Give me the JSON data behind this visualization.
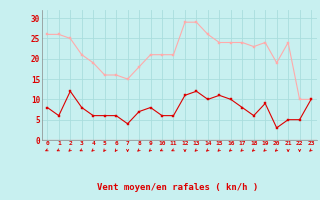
{
  "hours": [
    0,
    1,
    2,
    3,
    4,
    5,
    6,
    7,
    8,
    9,
    10,
    11,
    12,
    13,
    14,
    15,
    16,
    17,
    18,
    19,
    20,
    21,
    22,
    23
  ],
  "wind_mean": [
    8,
    6,
    12,
    8,
    6,
    6,
    6,
    4,
    7,
    8,
    6,
    6,
    11,
    12,
    10,
    11,
    10,
    8,
    6,
    9,
    3,
    5,
    5,
    10
  ],
  "wind_gust": [
    26,
    26,
    25,
    21,
    19,
    16,
    16,
    15,
    18,
    21,
    21,
    21,
    29,
    29,
    26,
    24,
    24,
    24,
    23,
    24,
    19,
    24,
    10,
    10
  ],
  "bg_color": "#c8f0f0",
  "grid_color": "#aadddd",
  "mean_color": "#dd0000",
  "gust_color": "#ffaaaa",
  "xlabel": "Vent moyen/en rafales ( kn/h )",
  "xlabel_color": "#dd0000",
  "tick_color": "#dd0000",
  "ylim": [
    0,
    32
  ],
  "yticks": [
    0,
    5,
    10,
    15,
    20,
    25,
    30
  ],
  "arrow_color": "#dd0000",
  "arrow_angles": [
    210,
    210,
    225,
    210,
    225,
    240,
    240,
    270,
    225,
    225,
    210,
    210,
    270,
    225,
    225,
    225,
    225,
    225,
    225,
    225,
    225,
    270,
    270,
    225
  ]
}
